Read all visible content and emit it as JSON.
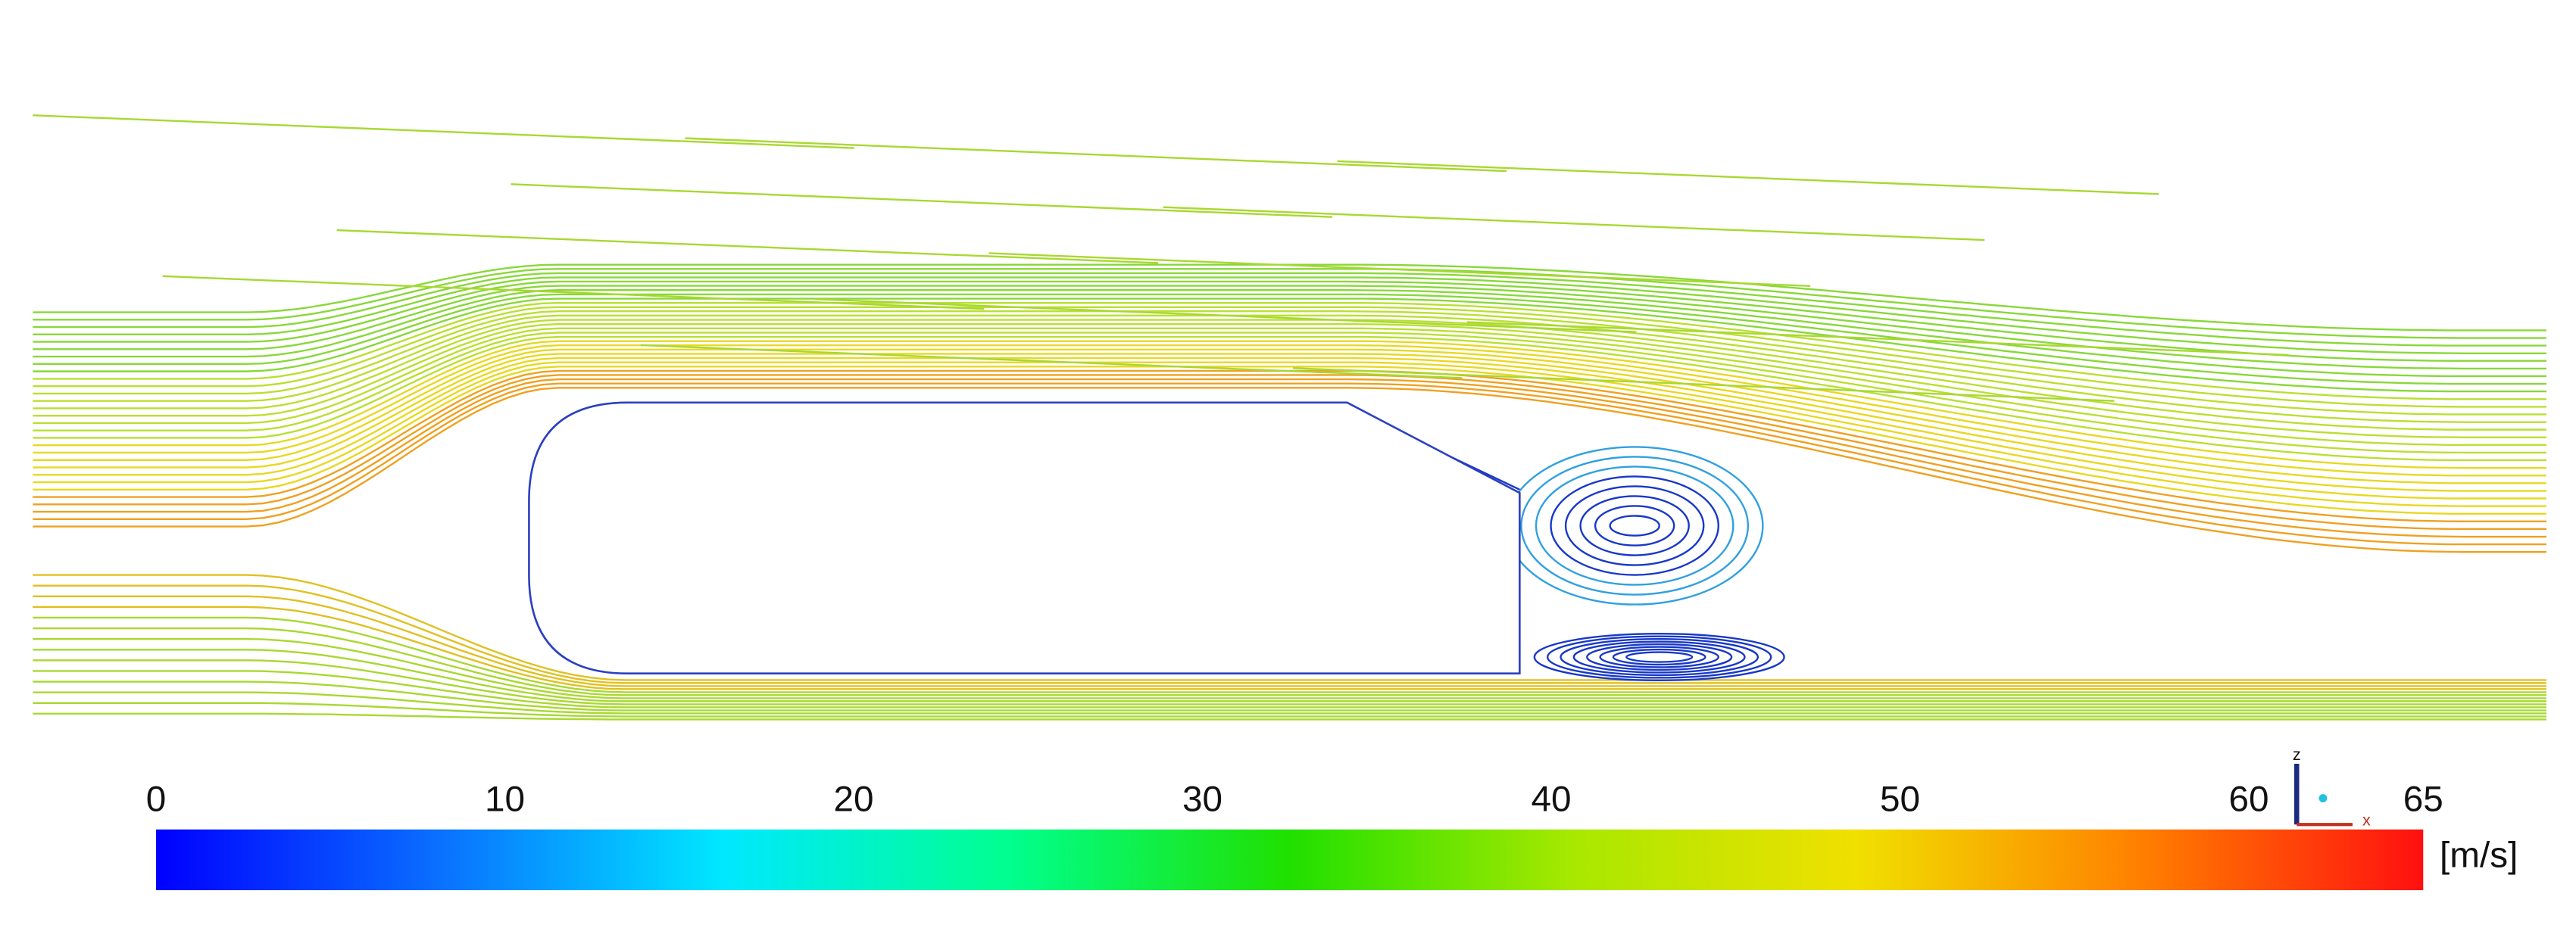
{
  "colorbar": {
    "min": 0,
    "max": 65,
    "ticks": [
      0,
      10,
      20,
      30,
      40,
      50,
      60,
      65
    ],
    "unit": "[m/s]",
    "colors": [
      "#0000ff",
      "#0a70ff",
      "#00e8ff",
      "#00ff90",
      "#20e000",
      "#a8e800",
      "#f0e000",
      "#ff8000",
      "#ff1010"
    ]
  },
  "triad": {
    "z": "z",
    "x": "x"
  }
}
